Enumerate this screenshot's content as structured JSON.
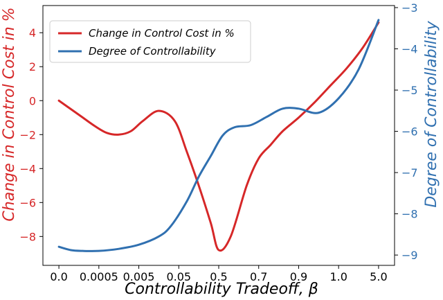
{
  "chart_data": {
    "type": "line",
    "xlabel": "Controllability Tradeoff,  β",
    "ylabel_left": "Change in Control Cost in %",
    "ylabel_right": "Degree of Controllability",
    "categories": [
      "0.0",
      "0.0005",
      "0.005",
      "0.05",
      "0.5",
      "0.7",
      "0.9",
      "1.0",
      "5.0"
    ],
    "ylim_left": [
      -9.7,
      5.6
    ],
    "ylim_right": [
      -9.25,
      -2.95
    ],
    "yticks_left": [
      -8,
      -6,
      -4,
      -2,
      0,
      2,
      4
    ],
    "yticks_right": [
      -9,
      -8,
      -7,
      -6,
      -5,
      -4,
      -3
    ],
    "legend_position": "top-left",
    "grid": false,
    "series": [
      {
        "name": "Change in Control Cost in %",
        "axis": "left",
        "color": "#d62728",
        "x": [
          0,
          0.3,
          0.6,
          0.9,
          1.2,
          1.5,
          1.8,
          2.1,
          2.5,
          2.9,
          3.2,
          3.5,
          3.8,
          4.0,
          4.3,
          4.7,
          5.0,
          5.3,
          5.6,
          6.0,
          6.4,
          6.8,
          7.2,
          7.6,
          8.0
        ],
        "values": [
          0,
          -0.5,
          -1.0,
          -1.5,
          -1.9,
          -2.0,
          -1.8,
          -1.2,
          -0.6,
          -1.2,
          -3.0,
          -5.0,
          -7.2,
          -8.8,
          -8.0,
          -5.0,
          -3.4,
          -2.6,
          -1.8,
          -1.0,
          -0.1,
          0.9,
          1.9,
          3.1,
          4.6
        ]
      },
      {
        "name": "Degree of Controllability",
        "axis": "right",
        "color": "#3070b0",
        "x": [
          0,
          0.3,
          0.6,
          1.0,
          1.5,
          2.0,
          2.5,
          2.8,
          3.2,
          3.5,
          3.8,
          4.1,
          4.4,
          4.8,
          5.2,
          5.6,
          6.0,
          6.5,
          7.0,
          7.5,
          8.0
        ],
        "values": [
          -8.8,
          -8.88,
          -8.9,
          -8.9,
          -8.85,
          -8.75,
          -8.55,
          -8.3,
          -7.7,
          -7.1,
          -6.6,
          -6.1,
          -5.9,
          -5.85,
          -5.65,
          -5.45,
          -5.45,
          -5.55,
          -5.2,
          -4.5,
          -3.3
        ]
      }
    ]
  }
}
